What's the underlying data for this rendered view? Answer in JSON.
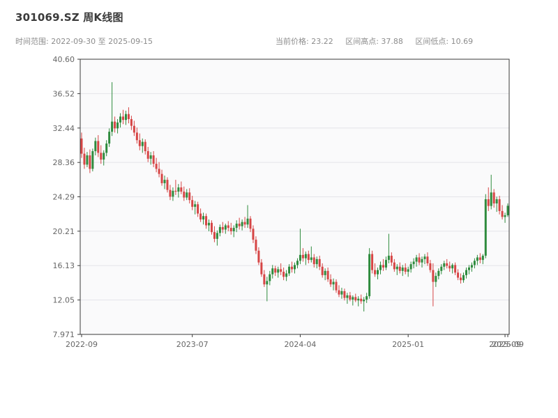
{
  "header": {
    "title": "301069.SZ 周K线图",
    "subtitle_left": "时间范围: 2022-09-30 至 2025-09-15",
    "stats": [
      "当前价格: 23.22",
      "区间高点: 37.88",
      "区间低点: 10.69"
    ]
  },
  "chart_data": {
    "type": "candlestick",
    "symbol": "301069.SZ",
    "interval": "weekly",
    "title": "301069.SZ 周K线图",
    "current_price": 23.22,
    "range_high": 37.88,
    "range_low": 10.69,
    "ylim": [
      7.971,
      40.6
    ],
    "y_ticks": [
      7.971,
      12.05,
      16.13,
      20.21,
      24.29,
      28.36,
      32.44,
      36.52,
      40.6
    ],
    "y_tick_labels": [
      "7.971",
      "12.05",
      "16.13",
      "20.21",
      "24.29",
      "28.36",
      "32.44",
      "36.52",
      "40.60"
    ],
    "x_ticks": [
      {
        "index": 0,
        "label": "2022-09"
      },
      {
        "index": 40,
        "label": "2023-07"
      },
      {
        "index": 79,
        "label": "2024-04"
      },
      {
        "index": 118,
        "label": "2025-01"
      },
      {
        "index": 153,
        "label": "2025-09"
      },
      {
        "index": 154,
        "label": "2025-09"
      }
    ],
    "grid": true,
    "legend": "none",
    "up_color": "#2e8b3d",
    "down_color": "#d64545",
    "grid_color": "#e4e4e9",
    "frame_color": "#3a3a3a",
    "plot_bg": "#fafafb",
    "tick_label_color": "#666666",
    "candles_ohlc": [
      [
        31.2,
        31.9,
        28.9,
        29.4
      ],
      [
        29.4,
        30.1,
        27.6,
        28.1
      ],
      [
        28.1,
        29.6,
        27.8,
        29.2
      ],
      [
        29.2,
        29.9,
        27.1,
        27.6
      ],
      [
        27.6,
        30.0,
        27.3,
        29.7
      ],
      [
        29.7,
        31.3,
        29.2,
        30.9
      ],
      [
        30.9,
        31.6,
        29.0,
        29.5
      ],
      [
        29.5,
        30.4,
        28.2,
        28.7
      ],
      [
        28.7,
        29.8,
        28.0,
        29.5
      ],
      [
        29.5,
        31.0,
        29.1,
        30.6
      ],
      [
        30.6,
        32.4,
        30.2,
        32.0
      ],
      [
        32.0,
        37.88,
        31.5,
        33.2
      ],
      [
        33.2,
        33.8,
        31.9,
        32.4
      ],
      [
        32.4,
        33.5,
        31.8,
        33.1
      ],
      [
        33.1,
        34.2,
        32.5,
        33.8
      ],
      [
        33.8,
        34.6,
        32.9,
        33.4
      ],
      [
        33.4,
        34.5,
        32.8,
        34.1
      ],
      [
        34.1,
        34.9,
        33.0,
        33.5
      ],
      [
        33.5,
        33.9,
        32.2,
        32.7
      ],
      [
        32.7,
        33.3,
        31.5,
        31.9
      ],
      [
        31.9,
        32.5,
        30.6,
        31.0
      ],
      [
        31.0,
        31.8,
        29.8,
        30.3
      ],
      [
        30.3,
        31.2,
        29.5,
        30.8
      ],
      [
        30.8,
        31.1,
        29.3,
        29.7
      ],
      [
        29.7,
        30.2,
        28.4,
        28.8
      ],
      [
        28.8,
        29.6,
        28.1,
        29.2
      ],
      [
        29.2,
        29.7,
        27.8,
        28.2
      ],
      [
        28.2,
        28.9,
        27.2,
        27.6
      ],
      [
        27.6,
        28.4,
        26.6,
        27.0
      ],
      [
        27.0,
        27.5,
        25.6,
        25.9
      ],
      [
        25.9,
        26.8,
        25.2,
        26.3
      ],
      [
        26.3,
        26.6,
        24.8,
        25.1
      ],
      [
        25.1,
        25.7,
        23.9,
        24.3
      ],
      [
        24.3,
        25.4,
        23.8,
        25.0
      ],
      [
        25.0,
        26.3,
        24.5,
        24.9
      ],
      [
        24.9,
        25.8,
        24.2,
        25.4
      ],
      [
        25.4,
        26.1,
        24.6,
        24.9
      ],
      [
        24.9,
        25.5,
        23.8,
        24.2
      ],
      [
        24.2,
        25.2,
        23.9,
        24.8
      ],
      [
        24.8,
        25.3,
        23.5,
        23.9
      ],
      [
        23.9,
        24.4,
        22.7,
        23.1
      ],
      [
        23.1,
        23.8,
        22.2,
        23.4
      ],
      [
        23.4,
        23.7,
        21.9,
        22.3
      ],
      [
        22.3,
        22.9,
        21.3,
        21.6
      ],
      [
        21.6,
        22.4,
        21.0,
        22.0
      ],
      [
        22.0,
        22.3,
        20.5,
        20.9
      ],
      [
        20.9,
        21.6,
        20.2,
        21.2
      ],
      [
        21.2,
        21.5,
        19.8,
        20.1
      ],
      [
        20.1,
        20.8,
        18.9,
        19.3
      ],
      [
        19.3,
        20.3,
        18.5,
        20.0
      ],
      [
        20.0,
        21.0,
        19.6,
        20.7
      ],
      [
        20.7,
        21.3,
        20.0,
        20.4
      ],
      [
        20.4,
        21.1,
        19.9,
        20.9
      ],
      [
        20.9,
        21.4,
        20.2,
        20.6
      ],
      [
        20.6,
        21.2,
        19.8,
        20.2
      ],
      [
        20.2,
        20.9,
        19.5,
        20.6
      ],
      [
        20.6,
        21.5,
        20.1,
        21.1
      ],
      [
        21.1,
        21.8,
        20.4,
        20.8
      ],
      [
        20.8,
        21.6,
        20.3,
        21.3
      ],
      [
        21.3,
        21.9,
        20.6,
        21.0
      ],
      [
        21.0,
        23.3,
        20.6,
        21.7
      ],
      [
        21.7,
        22.0,
        20.1,
        20.5
      ],
      [
        20.5,
        20.9,
        18.8,
        19.2
      ],
      [
        19.2,
        19.6,
        17.5,
        17.9
      ],
      [
        17.9,
        18.3,
        16.2,
        16.5
      ],
      [
        16.5,
        16.9,
        14.8,
        15.1
      ],
      [
        15.1,
        15.6,
        13.6,
        13.9
      ],
      [
        13.9,
        14.8,
        11.9,
        14.3
      ],
      [
        14.3,
        15.5,
        13.8,
        15.1
      ],
      [
        15.1,
        16.2,
        14.6,
        15.8
      ],
      [
        15.8,
        16.1,
        14.9,
        15.3
      ],
      [
        15.3,
        16.0,
        14.7,
        15.7
      ],
      [
        15.7,
        16.4,
        15.0,
        15.4
      ],
      [
        15.4,
        15.9,
        14.4,
        14.8
      ],
      [
        14.8,
        15.6,
        14.3,
        15.2
      ],
      [
        15.2,
        16.3,
        14.9,
        16.0
      ],
      [
        16.0,
        16.6,
        15.3,
        15.7
      ],
      [
        15.7,
        16.5,
        15.2,
        16.2
      ],
      [
        16.2,
        17.0,
        15.8,
        16.7
      ],
      [
        16.7,
        20.5,
        16.3,
        17.4
      ],
      [
        17.4,
        18.2,
        16.6,
        17.0
      ],
      [
        17.0,
        17.8,
        16.2,
        17.5
      ],
      [
        17.5,
        17.9,
        16.4,
        16.8
      ],
      [
        16.8,
        18.4,
        16.5,
        17.1
      ],
      [
        17.1,
        17.5,
        15.9,
        16.3
      ],
      [
        16.3,
        17.2,
        15.8,
        16.9
      ],
      [
        16.9,
        17.3,
        15.6,
        16.0
      ],
      [
        16.0,
        16.4,
        14.7,
        15.0
      ],
      [
        15.0,
        15.8,
        14.4,
        15.5
      ],
      [
        15.5,
        15.9,
        14.2,
        14.5
      ],
      [
        14.5,
        15.1,
        13.6,
        13.9
      ],
      [
        13.9,
        14.6,
        13.2,
        14.2
      ],
      [
        14.2,
        14.5,
        12.9,
        13.2
      ],
      [
        13.2,
        13.8,
        12.4,
        12.7
      ],
      [
        12.7,
        13.5,
        12.2,
        13.1
      ],
      [
        13.1,
        13.4,
        12.0,
        12.3
      ],
      [
        12.3,
        12.9,
        11.6,
        12.6
      ],
      [
        12.6,
        13.0,
        11.9,
        12.1
      ],
      [
        12.1,
        12.6,
        11.4,
        12.4
      ],
      [
        12.4,
        12.8,
        11.8,
        12.0
      ],
      [
        12.0,
        12.5,
        11.3,
        12.2
      ],
      [
        12.2,
        12.7,
        11.6,
        11.9
      ],
      [
        11.9,
        12.4,
        10.69,
        12.1
      ],
      [
        12.1,
        12.9,
        11.7,
        12.5
      ],
      [
        12.5,
        18.2,
        12.2,
        17.5
      ],
      [
        17.5,
        17.9,
        15.2,
        15.6
      ],
      [
        15.6,
        16.4,
        14.8,
        15.1
      ],
      [
        15.1,
        15.9,
        14.5,
        15.6
      ],
      [
        15.6,
        16.6,
        15.1,
        16.2
      ],
      [
        16.2,
        16.9,
        15.5,
        15.9
      ],
      [
        15.9,
        17.2,
        15.6,
        16.8
      ],
      [
        16.8,
        19.9,
        16.4,
        17.3
      ],
      [
        17.3,
        17.7,
        16.1,
        16.5
      ],
      [
        16.5,
        16.9,
        15.4,
        15.7
      ],
      [
        15.7,
        16.3,
        15.0,
        16.0
      ],
      [
        16.0,
        16.5,
        15.2,
        15.5
      ],
      [
        15.5,
        16.2,
        14.9,
        15.9
      ],
      [
        15.9,
        16.4,
        15.1,
        15.4
      ],
      [
        15.4,
        16.0,
        14.8,
        15.7
      ],
      [
        15.7,
        16.6,
        15.3,
        16.3
      ],
      [
        16.3,
        17.0,
        15.8,
        16.6
      ],
      [
        16.6,
        17.4,
        16.0,
        17.1
      ],
      [
        17.1,
        17.6,
        16.2,
        16.5
      ],
      [
        16.5,
        17.2,
        15.9,
        16.9
      ],
      [
        16.9,
        17.5,
        16.3,
        17.2
      ],
      [
        17.2,
        17.7,
        16.1,
        16.4
      ],
      [
        16.4,
        16.8,
        15.3,
        15.6
      ],
      [
        15.6,
        16.4,
        11.3,
        14.2
      ],
      [
        14.2,
        15.3,
        13.6,
        14.9
      ],
      [
        14.9,
        15.8,
        14.5,
        15.5
      ],
      [
        15.5,
        16.3,
        15.1,
        16.0
      ],
      [
        16.0,
        16.7,
        15.6,
        16.4
      ],
      [
        16.4,
        16.9,
        15.8,
        16.1
      ],
      [
        16.1,
        16.6,
        15.4,
        15.8
      ],
      [
        15.8,
        16.4,
        15.2,
        16.2
      ],
      [
        16.2,
        16.5,
        15.0,
        15.3
      ],
      [
        15.3,
        15.7,
        14.4,
        14.7
      ],
      [
        14.7,
        15.2,
        14.0,
        14.4
      ],
      [
        14.4,
        15.3,
        14.1,
        15.0
      ],
      [
        15.0,
        15.9,
        14.6,
        15.6
      ],
      [
        15.6,
        16.2,
        15.1,
        15.9
      ],
      [
        15.9,
        16.5,
        15.4,
        16.2
      ],
      [
        16.2,
        17.0,
        15.8,
        16.7
      ],
      [
        16.7,
        17.4,
        16.2,
        17.1
      ],
      [
        17.1,
        17.6,
        16.4,
        16.8
      ],
      [
        16.8,
        17.5,
        16.3,
        17.3
      ],
      [
        17.3,
        24.6,
        17.0,
        24.0
      ],
      [
        24.0,
        25.4,
        22.6,
        23.2
      ],
      [
        23.2,
        26.9,
        22.8,
        24.8
      ],
      [
        24.8,
        25.2,
        23.0,
        23.5
      ],
      [
        23.5,
        24.3,
        22.5,
        24.0
      ],
      [
        24.0,
        24.4,
        22.2,
        22.6
      ],
      [
        22.6,
        23.3,
        21.6,
        21.9
      ],
      [
        21.9,
        22.4,
        21.2,
        22.1
      ],
      [
        22.1,
        23.5,
        21.9,
        23.22
      ]
    ]
  }
}
